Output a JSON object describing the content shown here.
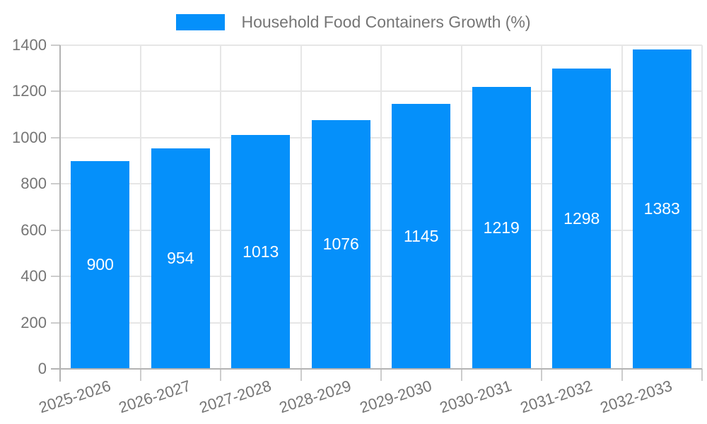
{
  "chart_data": {
    "type": "bar",
    "legend_label": "Household Food Containers Growth (%)",
    "legend_position": "top-center",
    "categories": [
      "2025-2026",
      "2026-2027",
      "2027-2028",
      "2028-2029",
      "2029-2030",
      "2030-2031",
      "2031-2032",
      "2032-2033"
    ],
    "values": [
      900,
      954,
      1013,
      1076,
      1145,
      1219,
      1298,
      1383
    ],
    "bar_labels": [
      "900",
      "954",
      "1013",
      "1076",
      "1145",
      "1219",
      "1298",
      "1383"
    ],
    "yticks": [
      0,
      200,
      400,
      600,
      800,
      1000,
      1200,
      1400
    ],
    "ylim": [
      0,
      1400
    ],
    "grid": "horizontal-and-vertical",
    "colors": {
      "bar": "#0590fa",
      "bar_label": "#ffffff",
      "axis_line": "#b3b3b3",
      "gridline": "#e6e6e6",
      "tick_mark": "#cccccc",
      "tick_text": "#757575",
      "legend_text": "#757575",
      "background": "#ffffff"
    }
  }
}
